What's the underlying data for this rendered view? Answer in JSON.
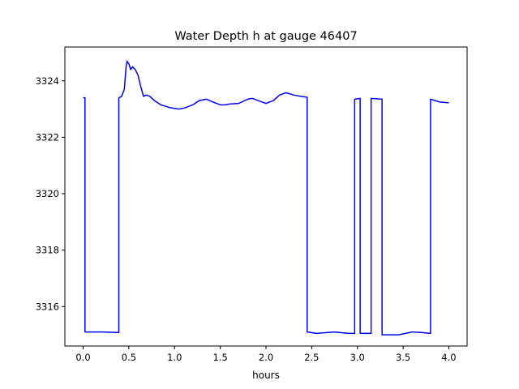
{
  "chart_data": {
    "type": "line",
    "title": "Water Depth h at gauge 46407",
    "xlabel": "hours",
    "ylabel": "",
    "xlim": [
      -0.2,
      4.2
    ],
    "ylim": [
      3314.6,
      3325.2
    ],
    "xticks": [
      0.0,
      0.5,
      1.0,
      1.5,
      2.0,
      2.5,
      3.0,
      3.5,
      4.0
    ],
    "xtick_labels": [
      "0.0",
      "0.5",
      "1.0",
      "1.5",
      "2.0",
      "2.5",
      "3.0",
      "3.5",
      "4.0"
    ],
    "yticks": [
      3316,
      3318,
      3320,
      3322,
      3324
    ],
    "ytick_labels": [
      "3316",
      "3318",
      "3320",
      "3322",
      "3324"
    ],
    "grid": false,
    "legend": "none",
    "series": [
      {
        "color": "#0000ff",
        "x": [
          0.0,
          0.02,
          0.02,
          0.2,
          0.37,
          0.39,
          0.39,
          0.42,
          0.45,
          0.47,
          0.48,
          0.5,
          0.52,
          0.54,
          0.57,
          0.6,
          0.63,
          0.66,
          0.69,
          0.73,
          0.78,
          0.85,
          0.95,
          1.05,
          1.12,
          1.2,
          1.27,
          1.35,
          1.42,
          1.5,
          1.55,
          1.6,
          1.7,
          1.8,
          1.85,
          1.93,
          2.0,
          2.08,
          2.15,
          2.22,
          2.3,
          2.38,
          2.45,
          2.45,
          2.55,
          2.75,
          2.9,
          2.97,
          2.97,
          3.03,
          3.03,
          3.15,
          3.15,
          3.27,
          3.27,
          3.45,
          3.6,
          3.7,
          3.8,
          3.8,
          3.9,
          4.0
        ],
        "y": [
          3323.4,
          3323.4,
          3315.1,
          3315.1,
          3315.08,
          3315.08,
          3323.4,
          3323.45,
          3323.7,
          3324.5,
          3324.7,
          3324.6,
          3324.4,
          3324.5,
          3324.4,
          3324.2,
          3323.8,
          3323.45,
          3323.5,
          3323.45,
          3323.3,
          3323.15,
          3323.05,
          3323.0,
          3323.05,
          3323.15,
          3323.3,
          3323.35,
          3323.25,
          3323.15,
          3323.15,
          3323.18,
          3323.2,
          3323.35,
          3323.38,
          3323.28,
          3323.2,
          3323.3,
          3323.5,
          3323.58,
          3323.5,
          3323.45,
          3323.42,
          3315.1,
          3315.05,
          3315.1,
          3315.05,
          3315.05,
          3323.35,
          3323.38,
          3315.05,
          3315.05,
          3323.38,
          3323.35,
          3315.0,
          3315.0,
          3315.1,
          3315.08,
          3315.05,
          3323.35,
          3323.25,
          3323.22
        ]
      }
    ]
  }
}
